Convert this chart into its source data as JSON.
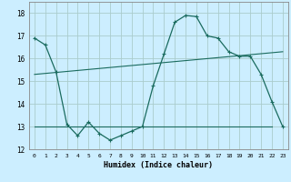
{
  "xlabel": "Humidex (Indice chaleur)",
  "background_color": "#cceeff",
  "grid_color": "#aacccc",
  "line_color": "#1a6b5e",
  "xlim": [
    -0.5,
    23.5
  ],
  "ylim": [
    12,
    18.5
  ],
  "yticks": [
    12,
    13,
    14,
    15,
    16,
    17,
    18
  ],
  "xticks": [
    0,
    1,
    2,
    3,
    4,
    5,
    6,
    7,
    8,
    9,
    10,
    11,
    12,
    13,
    14,
    15,
    16,
    17,
    18,
    19,
    20,
    21,
    22,
    23
  ],
  "line1_x": [
    0,
    1,
    2,
    3,
    4,
    5,
    6,
    7,
    8,
    9,
    10,
    11,
    12,
    13,
    14,
    15,
    16,
    17,
    18,
    19,
    20,
    21,
    22,
    23
  ],
  "line1_y": [
    16.9,
    16.6,
    15.4,
    13.1,
    12.6,
    13.2,
    12.7,
    12.4,
    12.6,
    12.8,
    13.0,
    14.8,
    16.2,
    17.6,
    17.9,
    17.85,
    17.0,
    16.9,
    16.3,
    16.1,
    16.1,
    15.3,
    14.1,
    13.0
  ],
  "line2_x": [
    0,
    23
  ],
  "line2_y": [
    15.3,
    16.3
  ],
  "line3_x": [
    0,
    22
  ],
  "line3_y": [
    13.0,
    13.0
  ],
  "marker_size": 3,
  "linewidth1": 0.9,
  "linewidth23": 0.8
}
